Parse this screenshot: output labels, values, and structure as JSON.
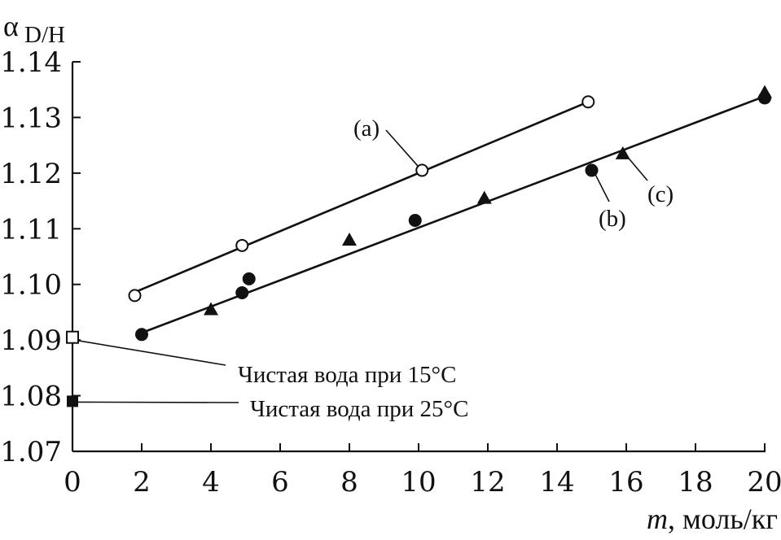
{
  "chart_data": {
    "type": "scatter",
    "xlabel_var": "m",
    "xlabel_unit": ", моль/кг",
    "ylabel_symbol": "α",
    "ylabel_subscript": "D/H",
    "xlim": [
      0,
      20
    ],
    "ylim": [
      1.07,
      1.14
    ],
    "x_ticks": [
      0,
      2,
      4,
      6,
      8,
      10,
      12,
      14,
      16,
      18,
      20
    ],
    "x_tick_labels": [
      "0",
      "2",
      "4",
      "6",
      "8",
      "10",
      "12",
      "14",
      "16",
      "18",
      "20"
    ],
    "y_ticks": [
      1.07,
      1.08,
      1.09,
      1.1,
      1.11,
      1.12,
      1.13,
      1.14
    ],
    "y_tick_labels": [
      "1.07",
      "1.08",
      "1.09",
      "1.10",
      "1.11",
      "1.12",
      "1.13",
      "1.14"
    ],
    "grid": false,
    "series": [
      {
        "label": "(a)",
        "marker": "open-circle",
        "points": [
          [
            1.8,
            1.098
          ],
          [
            4.9,
            1.107
          ],
          [
            10.1,
            1.1205
          ],
          [
            14.9,
            1.1328
          ]
        ],
        "fit_line": [
          [
            1.8,
            1.0986
          ],
          [
            14.9,
            1.1328
          ]
        ]
      },
      {
        "label": "(b)",
        "marker": "filled-circle",
        "points": [
          [
            2.0,
            1.091
          ],
          [
            4.9,
            1.0985
          ],
          [
            5.1,
            1.101
          ],
          [
            9.9,
            1.1115
          ],
          [
            15.0,
            1.1205
          ],
          [
            20.0,
            1.1335
          ]
        ],
        "fit_line": [
          [
            2.0,
            1.0913
          ],
          [
            20.0,
            1.1338
          ]
        ]
      },
      {
        "label": "(c)",
        "marker": "filled-triangle",
        "points": [
          [
            4.0,
            1.0955
          ],
          [
            8.0,
            1.108
          ],
          [
            11.9,
            1.1155
          ],
          [
            15.9,
            1.1235
          ],
          [
            20.0,
            1.1345
          ]
        ]
      }
    ],
    "reference_points": [
      {
        "label": "Чистая вода при 15°C",
        "marker": "open-square",
        "x": 0,
        "y": 1.0905
      },
      {
        "label": "Чистая вода при 25°C",
        "marker": "filled-square",
        "x": 0,
        "y": 1.079
      }
    ],
    "colors": {
      "ink": "#111111",
      "background": "#ffffff"
    }
  }
}
